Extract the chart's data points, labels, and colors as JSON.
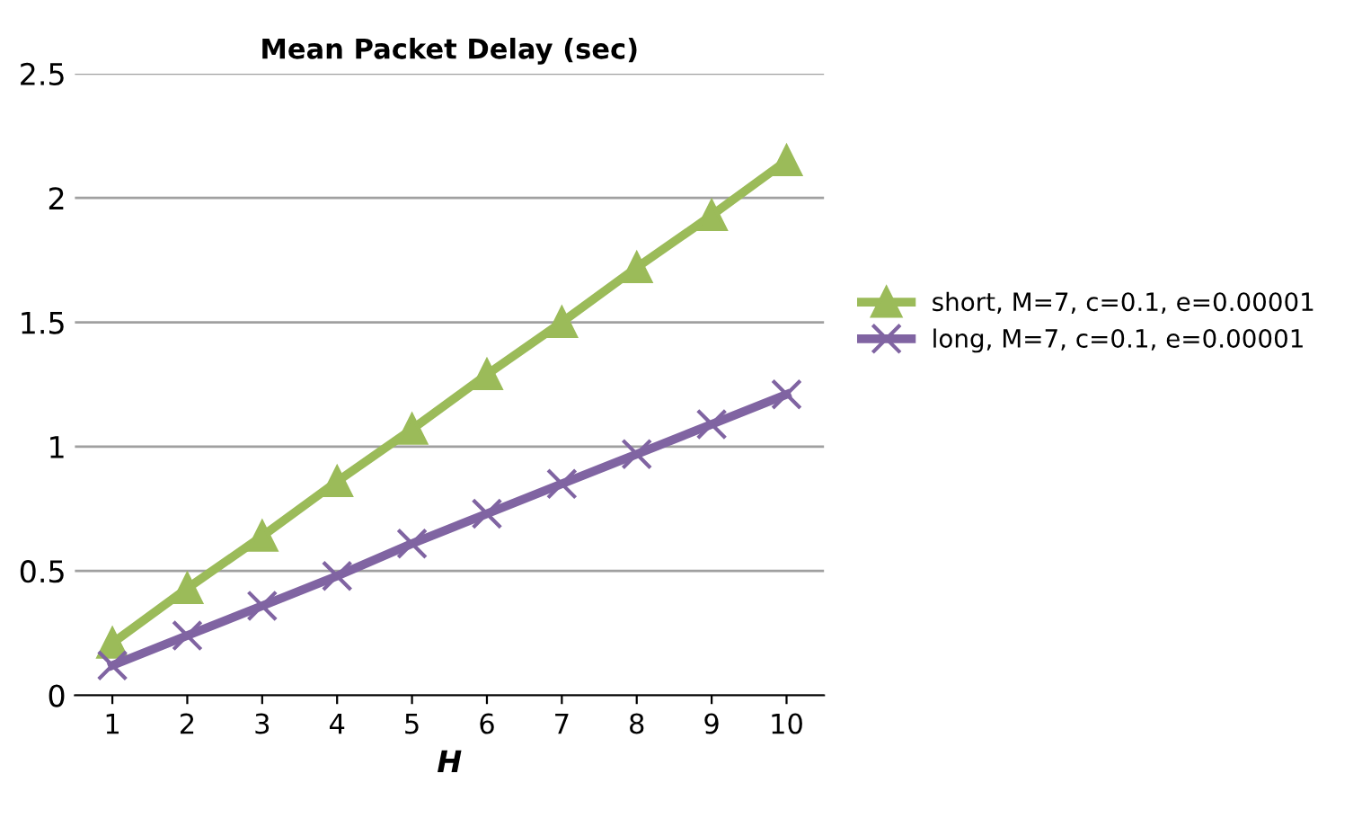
{
  "chart_data": {
    "type": "line",
    "title": "Mean Packet Delay (sec)",
    "xlabel": "H",
    "categories": [
      "1",
      "2",
      "3",
      "4",
      "5",
      "6",
      "7",
      "8",
      "9",
      "10"
    ],
    "series": [
      {
        "name": "short, M=7, c=0.1, e=0.00001",
        "color": "#9bbb59",
        "marker": "triangle",
        "values": [
          0.21,
          0.43,
          0.64,
          0.86,
          1.07,
          1.29,
          1.5,
          1.72,
          1.93,
          2.15
        ]
      },
      {
        "name": "long, M=7, c=0.1, e=0.00001",
        "color": "#8064a2",
        "marker": "cross",
        "values": [
          0.12,
          0.24,
          0.36,
          0.48,
          0.61,
          0.73,
          0.85,
          0.97,
          1.09,
          1.21
        ]
      }
    ],
    "ylim": [
      0,
      2.5
    ],
    "yticks": [
      0,
      0.5,
      1,
      1.5,
      2,
      2.5
    ],
    "grid": "y",
    "legend": "right",
    "line_style": "solid"
  }
}
